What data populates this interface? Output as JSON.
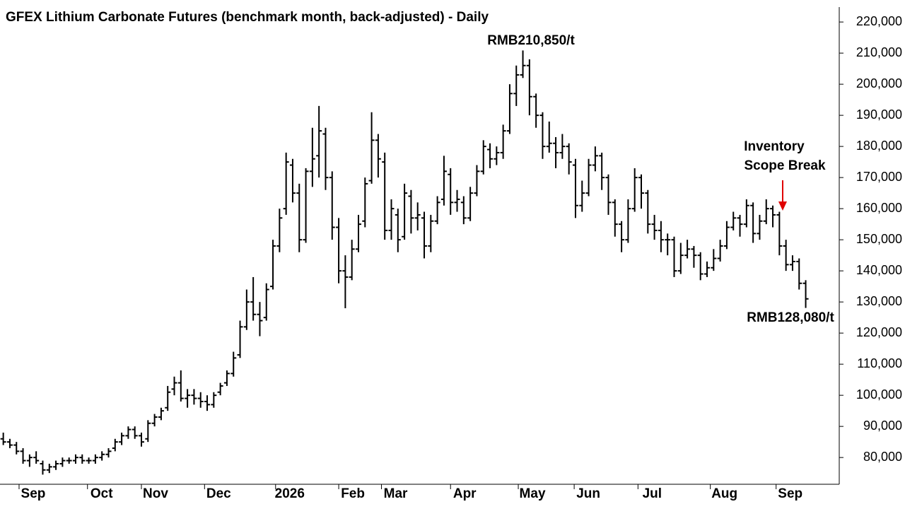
{
  "chart_data": {
    "type": "ohlc",
    "title": "GFEX Lithium Carbonate Futures (benchmark month, back-adjusted) - Daily",
    "color": "#000000",
    "open": [
      86000,
      85000,
      84000,
      82000,
      79000,
      80000,
      78000,
      76000,
      77000,
      78000,
      79000,
      79000,
      80000,
      79000,
      79000,
      80000,
      81000,
      83000,
      85000,
      87000,
      89000,
      87000,
      86000,
      91000,
      93000,
      96000,
      102000,
      104000,
      99000,
      100000,
      99000,
      98000,
      97000,
      101000,
      104000,
      107000,
      113000,
      122000,
      130000,
      126000,
      125000,
      135000,
      148000,
      160000,
      174000,
      165000,
      150000,
      172000,
      177000,
      184000,
      170000,
      154000,
      140000,
      138000,
      147000,
      156000,
      169000,
      182000,
      175000,
      153000,
      158000,
      151000,
      164000,
      157000,
      157000,
      148000,
      156000,
      163000,
      171000,
      162000,
      162000,
      157000,
      165000,
      172000,
      179000,
      176000,
      178000,
      185000,
      197000,
      203000,
      206000,
      196000,
      190000,
      180000,
      181000,
      178000,
      180000,
      174000,
      161000,
      165000,
      174000,
      177000,
      170000,
      162000,
      155000,
      150000,
      160000,
      170000,
      165000,
      155000,
      153000,
      150000,
      150000,
      140000,
      145000,
      147000,
      145000,
      139000,
      141000,
      144000,
      148000,
      154000,
      157000,
      155000,
      161000,
      152000,
      156000,
      160000,
      158000,
      148000,
      142000,
      143000,
      136000
    ],
    "high": [
      88000,
      86000,
      85000,
      83000,
      81000,
      82000,
      79000,
      78000,
      79000,
      80000,
      80000,
      81000,
      81000,
      80000,
      81000,
      82000,
      83000,
      86000,
      88000,
      90000,
      90000,
      88000,
      92000,
      94000,
      96000,
      103000,
      106000,
      108000,
      102000,
      102000,
      101000,
      100000,
      101000,
      104000,
      108000,
      114000,
      124000,
      134000,
      138000,
      130000,
      136000,
      150000,
      160000,
      178000,
      176000,
      168000,
      173000,
      186000,
      193000,
      186000,
      172000,
      157000,
      145000,
      150000,
      158000,
      170000,
      191000,
      184000,
      178000,
      163000,
      160000,
      168000,
      166000,
      162000,
      159000,
      158000,
      164000,
      177000,
      173000,
      166000,
      164000,
      167000,
      174000,
      182000,
      181000,
      180000,
      187000,
      200000,
      206000,
      210850,
      208000,
      197000,
      191000,
      188000,
      183000,
      184000,
      181000,
      176000,
      169000,
      176000,
      180000,
      178000,
      171000,
      163000,
      156000,
      163000,
      173000,
      171000,
      166000,
      158000,
      156000,
      152000,
      151000,
      149000,
      150000,
      148000,
      146000,
      143000,
      147000,
      150000,
      156000,
      159000,
      158000,
      163000,
      162000,
      158000,
      163000,
      161000,
      159000,
      150000,
      145000,
      144000,
      137000
    ],
    "low": [
      84000,
      83000,
      81000,
      78000,
      77000,
      78000,
      74500,
      75000,
      76000,
      77000,
      78000,
      78000,
      78000,
      78000,
      78000,
      79000,
      80000,
      82000,
      84000,
      86000,
      86000,
      83500,
      85000,
      90000,
      92000,
      95000,
      100000,
      98000,
      96000,
      97000,
      96000,
      95000,
      96000,
      100000,
      103000,
      106000,
      112000,
      121000,
      124000,
      119000,
      124000,
      134000,
      146000,
      158000,
      162000,
      146000,
      149000,
      167000,
      170000,
      166000,
      150000,
      136000,
      128000,
      137000,
      146000,
      154000,
      168000,
      170000,
      150000,
      150000,
      146000,
      150000,
      152000,
      153000,
      144000,
      146000,
      155000,
      161000,
      158000,
      159000,
      155000,
      156000,
      164000,
      171000,
      173000,
      174000,
      176000,
      184000,
      193000,
      202000,
      190000,
      186000,
      176000,
      178000,
      173000,
      176000,
      171000,
      157000,
      159000,
      164000,
      172000,
      166000,
      158000,
      151000,
      146000,
      149000,
      159000,
      160000,
      152000,
      150000,
      146000,
      145000,
      138000,
      139000,
      144000,
      141000,
      137000,
      138000,
      140000,
      143000,
      147000,
      153000,
      151000,
      154000,
      149000,
      150000,
      155000,
      154000,
      145000,
      140000,
      140000,
      134000,
      128080
    ],
    "close": [
      85000,
      84000,
      82000,
      79000,
      80000,
      79000,
      76000,
      77000,
      78000,
      79000,
      79000,
      80000,
      79000,
      79000,
      80000,
      81000,
      82000,
      85000,
      87000,
      89000,
      87000,
      85000,
      91000,
      93000,
      95000,
      101000,
      104000,
      99000,
      100000,
      99000,
      98000,
      97000,
      100000,
      103000,
      107000,
      112000,
      122000,
      130000,
      126000,
      124000,
      134000,
      148000,
      157000,
      175000,
      165000,
      150000,
      172000,
      176000,
      185000,
      170000,
      154000,
      140000,
      138000,
      147000,
      155000,
      168000,
      182000,
      176000,
      153000,
      160000,
      150000,
      165000,
      157000,
      158000,
      148000,
      156000,
      162000,
      172000,
      162000,
      163000,
      157000,
      165000,
      172000,
      180000,
      176000,
      178000,
      185000,
      197000,
      203000,
      206000,
      196000,
      190000,
      180000,
      181000,
      178000,
      180000,
      175000,
      161000,
      165000,
      174000,
      177000,
      170000,
      162000,
      155000,
      150000,
      160000,
      170000,
      165000,
      155000,
      153000,
      150000,
      150000,
      140000,
      145000,
      147000,
      145000,
      139000,
      141000,
      144000,
      148000,
      154000,
      157000,
      155000,
      161000,
      152000,
      156000,
      160000,
      158000,
      148000,
      142000,
      143000,
      136000,
      131000
    ],
    "xlim": [
      -0.5,
      127.1
    ],
    "xticks": [
      {
        "value": 2.4,
        "label": "Sep"
      },
      {
        "value": 12.8,
        "label": "Oct"
      },
      {
        "value": 21,
        "label": "Nov"
      },
      {
        "value": 30.6,
        "label": "Dec"
      },
      {
        "value": 41.4,
        "label": "2026"
      },
      {
        "value": 51,
        "label": "Feb"
      },
      {
        "value": 57.5,
        "label": "Mar"
      },
      {
        "value": 68,
        "label": "Apr"
      },
      {
        "value": 78.3,
        "label": "May"
      },
      {
        "value": 86.8,
        "label": "Jun"
      },
      {
        "value": 96.5,
        "label": "Jul"
      },
      {
        "value": 107.5,
        "label": "Aug"
      },
      {
        "value": 117.5,
        "label": "Sep"
      }
    ],
    "ylim": [
      71400,
      224800
    ],
    "yticks": [
      {
        "value": 80000,
        "label": "80,000"
      },
      {
        "value": 90000,
        "label": "90,000"
      },
      {
        "value": 100000,
        "label": "100,000"
      },
      {
        "value": 110000,
        "label": "110,000"
      },
      {
        "value": 120000,
        "label": "120,000"
      },
      {
        "value": 130000,
        "label": "130,000"
      },
      {
        "value": 140000,
        "label": "140,000"
      },
      {
        "value": 150000,
        "label": "150,000"
      },
      {
        "value": 160000,
        "label": "160,000"
      },
      {
        "value": 170000,
        "label": "170,000"
      },
      {
        "value": 180000,
        "label": "180,000"
      },
      {
        "value": 190000,
        "label": "190,000"
      },
      {
        "value": 200000,
        "label": "200,000"
      },
      {
        "value": 210000,
        "label": "210,000"
      },
      {
        "value": 220000,
        "label": "220,000"
      }
    ],
    "annotations": {
      "peak": "RMB210,850/t",
      "event": [
        "Inventory",
        "Scope Break"
      ],
      "low": "RMB128,080/t"
    }
  }
}
